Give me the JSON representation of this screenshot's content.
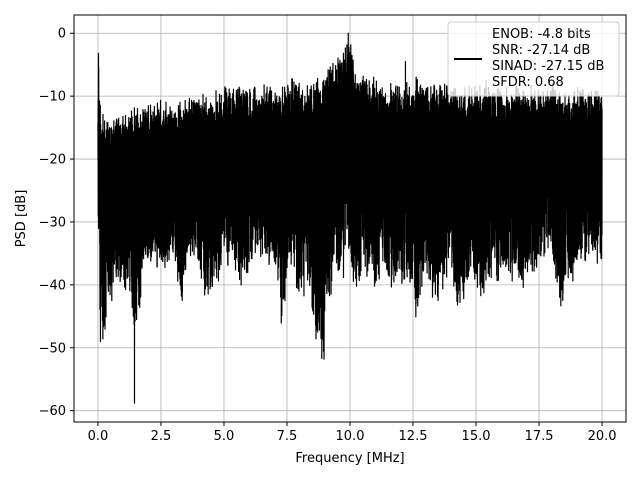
{
  "chart_data": {
    "type": "line",
    "title": "",
    "xlabel": "Frequency [MHz]",
    "ylabel": "PSD [dB]",
    "xlim": [
      -0.95,
      20.95
    ],
    "ylim": [
      -61.8,
      2.9
    ],
    "xticks": [
      0.0,
      2.5,
      5.0,
      7.5,
      10.0,
      12.5,
      15.0,
      17.5,
      20.0
    ],
    "xtick_labels": [
      "0.0",
      "2.5",
      "5.0",
      "7.5",
      "10.0",
      "12.5",
      "15.0",
      "17.5",
      "20.0"
    ],
    "yticks": [
      0,
      -10,
      -20,
      -30,
      -40,
      -50,
      -60
    ],
    "ytick_labels": [
      "0",
      "−10",
      "−20",
      "−30",
      "−40",
      "−50",
      "−60"
    ],
    "grid": true,
    "legend_placement": "top-right",
    "line_color": "#000000",
    "series": [
      {
        "name": "ENOB: -4.8 bits\nSNR: -27.14 dB\nSINAD: -27.15 dB\nSFDR: 0.68",
        "legend_lines": [
          "ENOB: -4.8 bits",
          "SNR: -27.14 dB",
          "SINAD: -27.15 dB",
          "SFDR: 0.68"
        ],
        "x": [
          0.0,
          0.02,
          0.05,
          0.1,
          0.15,
          0.25,
          0.4,
          0.6,
          0.8,
          1.0,
          1.2,
          1.4,
          1.6,
          1.8,
          2.0,
          2.3,
          2.6,
          3.0,
          3.3,
          3.6,
          4.0,
          4.3,
          4.6,
          5.0,
          5.3,
          5.6,
          6.0,
          6.3,
          6.6,
          7.0,
          7.3,
          7.6,
          8.0,
          8.3,
          8.6,
          8.9,
          9.2,
          9.5,
          9.8,
          9.9,
          10.0,
          10.2,
          10.5,
          10.8,
          11.0,
          11.3,
          11.6,
          12.0,
          12.3,
          12.6,
          13.0,
          13.3,
          13.6,
          14.0,
          14.3,
          14.6,
          15.0,
          15.3,
          15.6,
          16.0,
          16.3,
          16.6,
          17.0,
          17.3,
          17.6,
          18.0,
          18.3,
          18.6,
          19.0,
          19.3,
          19.6,
          20.0
        ],
        "upper": [
          -7.5,
          -3.3,
          -6.0,
          -11.0,
          -12.5,
          -13.0,
          -13.5,
          -13.5,
          -12.5,
          -12.0,
          -12.0,
          -11.5,
          -11.0,
          -11.5,
          -10.5,
          -10.5,
          -10.5,
          -10.0,
          -10.0,
          -9.5,
          -9.5,
          -9.5,
          -9.0,
          -8.5,
          -8.5,
          -8.0,
          -8.5,
          -8.5,
          -7.0,
          -8.5,
          -8.5,
          -6.5,
          -7.5,
          -7.5,
          -7.0,
          -7.5,
          -4.0,
          -4.0,
          -1.5,
          0.0,
          -0.5,
          -4.5,
          -6.5,
          -6.5,
          -6.5,
          -7.5,
          -7.5,
          -8.0,
          -7.5,
          -6.0,
          -7.5,
          -7.5,
          -7.5,
          -7.5,
          -8.5,
          -8.5,
          -8.0,
          -8.5,
          -8.5,
          -8.5,
          -8.5,
          -8.0,
          -8.5,
          -8.0,
          -9.0,
          -7.0,
          -8.5,
          -8.5,
          -8.5,
          -8.5,
          -8.5,
          -9.0
        ],
        "lower": [
          -30.0,
          -38.0,
          -40.0,
          -49.0,
          -48.0,
          -52.5,
          -41.0,
          -42.5,
          -39.0,
          -45.5,
          -40.0,
          -48.5,
          -46.0,
          -38.0,
          -37.0,
          -38.0,
          -37.5,
          -36.0,
          -44.5,
          -36.0,
          -38.5,
          -44.0,
          -42.0,
          -37.0,
          -37.0,
          -42.0,
          -38.0,
          -35.0,
          -36.5,
          -38.0,
          -47.0,
          -36.0,
          -44.5,
          -41.0,
          -48.5,
          -52.0,
          -44.0,
          -38.0,
          -41.0,
          -36.0,
          -38.0,
          -44.5,
          -40.0,
          -38.0,
          -43.0,
          -37.0,
          -42.0,
          -39.5,
          -41.0,
          -46.0,
          -38.0,
          -43.0,
          -43.0,
          -36.0,
          -47.0,
          -41.0,
          -41.0,
          -43.0,
          -40.0,
          -39.0,
          -40.0,
          -41.0,
          -41.0,
          -39.0,
          -37.0,
          -36.0,
          -45.0,
          -42.0,
          -38.0,
          -38.0,
          -36.0,
          -40.0
        ],
        "deep_dips": [
          {
            "x": 0.55,
            "y": -42.5
          },
          {
            "x": 1.45,
            "y": -58.8
          },
          {
            "x": 8.97,
            "y": -51.8
          },
          {
            "x": 8.85,
            "y": -48.5
          },
          {
            "x": 0.1,
            "y": -49.0
          }
        ],
        "peaks": [
          {
            "x": 0.02,
            "y": -3.2
          },
          {
            "x": 9.93,
            "y": 0.0
          },
          {
            "x": 12.2,
            "y": -4.5
          },
          {
            "x": 15.4,
            "y": -7.5
          }
        ]
      }
    ]
  }
}
